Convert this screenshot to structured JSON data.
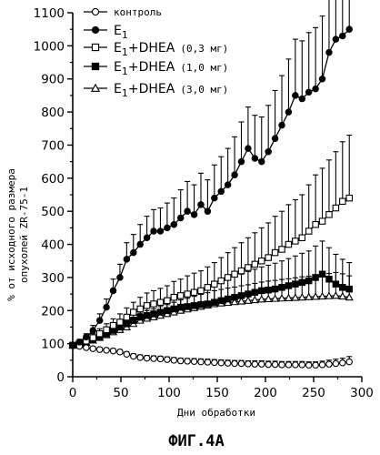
{
  "chart_data": {
    "type": "line",
    "xlabel": "Дни обработки",
    "ylabel_lines": [
      "% от исходного размера",
      "опухолей ZR-75-1"
    ],
    "caption": "ФИГ.4А",
    "xlim": [
      0,
      300
    ],
    "ylim": [
      0,
      1100
    ],
    "xticks": [
      0,
      50,
      100,
      150,
      200,
      250,
      300
    ],
    "yticks": [
      0,
      100,
      200,
      300,
      400,
      500,
      600,
      700,
      800,
      900,
      1000,
      1100
    ],
    "grid": false,
    "legend_position": "top-left",
    "series": [
      {
        "name": "контроль",
        "marker": "circle-open",
        "x": [
          0,
          7,
          14,
          21,
          28,
          35,
          42,
          49,
          56,
          63,
          70,
          77,
          84,
          91,
          98,
          105,
          112,
          119,
          126,
          133,
          140,
          147,
          154,
          161,
          168,
          175,
          182,
          189,
          196,
          203,
          210,
          217,
          224,
          231,
          238,
          245,
          252,
          259,
          266,
          273,
          280,
          287
        ],
        "y": [
          95,
          92,
          88,
          85,
          82,
          80,
          78,
          75,
          68,
          62,
          58,
          56,
          55,
          54,
          52,
          50,
          48,
          47,
          46,
          45,
          44,
          43,
          42,
          41,
          40,
          40,
          39,
          38,
          38,
          37,
          37,
          36,
          36,
          36,
          36,
          35,
          35,
          36,
          38,
          40,
          42,
          45
        ],
        "err": [
          3,
          4,
          5,
          6,
          6,
          6,
          7,
          7,
          7,
          7,
          8,
          8,
          8,
          8,
          8,
          8,
          8,
          8,
          9,
          9,
          9,
          9,
          9,
          9,
          9,
          9,
          9,
          10,
          10,
          10,
          10,
          10,
          10,
          10,
          10,
          10,
          10,
          11,
          12,
          13,
          14,
          16
        ]
      },
      {
        "name_main": "E",
        "name_sub": "1",
        "marker": "circle-filled",
        "x": [
          0,
          7,
          14,
          21,
          28,
          35,
          42,
          49,
          56,
          63,
          70,
          77,
          84,
          91,
          98,
          105,
          112,
          119,
          126,
          133,
          140,
          147,
          154,
          161,
          168,
          175,
          182,
          189,
          196,
          203,
          210,
          217,
          224,
          231,
          238,
          245,
          252,
          259,
          266,
          273,
          280,
          287
        ],
        "y": [
          95,
          105,
          120,
          140,
          170,
          210,
          260,
          300,
          355,
          375,
          400,
          420,
          440,
          440,
          450,
          460,
          480,
          500,
          490,
          520,
          500,
          540,
          560,
          580,
          610,
          650,
          690,
          660,
          650,
          680,
          720,
          760,
          800,
          850,
          840,
          860,
          870,
          900,
          980,
          1020,
          1030,
          1050
        ],
        "err": [
          5,
          8,
          10,
          15,
          20,
          25,
          35,
          40,
          50,
          55,
          60,
          65,
          65,
          70,
          75,
          80,
          85,
          90,
          90,
          95,
          95,
          100,
          105,
          110,
          115,
          120,
          125,
          130,
          135,
          140,
          145,
          150,
          160,
          170,
          175,
          180,
          185,
          190,
          200,
          210,
          220,
          230
        ]
      },
      {
        "name_main": "E",
        "name_sub": "1",
        "name_after": "+DHEA",
        "name_dose": "(0,3 мг)",
        "marker": "square-open",
        "x": [
          0,
          7,
          14,
          21,
          28,
          35,
          42,
          49,
          56,
          63,
          70,
          77,
          84,
          91,
          98,
          105,
          112,
          119,
          126,
          133,
          140,
          147,
          154,
          161,
          168,
          175,
          182,
          189,
          196,
          203,
          210,
          217,
          224,
          231,
          238,
          245,
          252,
          259,
          266,
          273,
          280,
          287
        ],
        "y": [
          95,
          100,
          108,
          118,
          130,
          142,
          155,
          165,
          180,
          195,
          205,
          215,
          220,
          225,
          230,
          240,
          245,
          250,
          255,
          260,
          270,
          280,
          290,
          300,
          310,
          320,
          330,
          340,
          350,
          360,
          375,
          385,
          400,
          410,
          420,
          440,
          460,
          470,
          490,
          510,
          530,
          540
        ],
        "err": [
          5,
          8,
          10,
          12,
          15,
          18,
          20,
          25,
          28,
          30,
          35,
          38,
          40,
          42,
          45,
          48,
          50,
          55,
          58,
          60,
          62,
          65,
          70,
          75,
          80,
          85,
          90,
          95,
          100,
          105,
          110,
          115,
          120,
          125,
          130,
          140,
          150,
          160,
          165,
          170,
          180,
          190
        ]
      },
      {
        "name_main": "E",
        "name_sub": "1",
        "name_after": "+DHEA",
        "name_dose": "(1,0 мг)",
        "marker": "square-filled",
        "x": [
          0,
          7,
          14,
          21,
          28,
          35,
          42,
          49,
          56,
          63,
          70,
          77,
          84,
          91,
          98,
          105,
          112,
          119,
          126,
          133,
          140,
          147,
          154,
          161,
          168,
          175,
          182,
          189,
          196,
          203,
          210,
          217,
          224,
          231,
          238,
          245,
          252,
          259,
          266,
          273,
          280,
          287
        ],
        "y": [
          95,
          100,
          105,
          112,
          120,
          130,
          140,
          150,
          160,
          170,
          180,
          185,
          190,
          195,
          200,
          205,
          210,
          212,
          215,
          218,
          220,
          225,
          230,
          235,
          240,
          245,
          250,
          255,
          260,
          262,
          265,
          270,
          275,
          280,
          285,
          290,
          300,
          310,
          295,
          280,
          270,
          265
        ],
        "err": [
          5,
          7,
          9,
          10,
          12,
          15,
          18,
          20,
          22,
          25,
          28,
          30,
          32,
          35,
          38,
          40,
          42,
          45,
          48,
          50,
          52,
          55,
          58,
          60,
          62,
          65,
          68,
          70,
          72,
          75,
          78,
          80,
          82,
          85,
          88,
          90,
          95,
          100,
          95,
          90,
          85,
          80
        ]
      },
      {
        "name_main": "E",
        "name_sub": "1",
        "name_after": "+DHEA",
        "name_dose": "(3,0 мг)",
        "marker": "triangle-open",
        "x": [
          0,
          7,
          14,
          21,
          28,
          35,
          42,
          49,
          56,
          63,
          70,
          77,
          84,
          91,
          98,
          105,
          112,
          119,
          126,
          133,
          140,
          147,
          154,
          161,
          168,
          175,
          182,
          189,
          196,
          203,
          210,
          217,
          224,
          231,
          238,
          245,
          252,
          259,
          266,
          273,
          280,
          287
        ],
        "y": [
          95,
          98,
          103,
          110,
          118,
          126,
          135,
          142,
          150,
          160,
          170,
          176,
          180,
          185,
          190,
          195,
          200,
          204,
          208,
          212,
          216,
          220,
          222,
          224,
          226,
          228,
          230,
          232,
          234,
          235,
          236,
          237,
          238,
          239,
          240,
          241,
          242,
          243,
          244,
          245,
          243,
          240
        ],
        "err": [
          5,
          6,
          8,
          9,
          10,
          12,
          14,
          16,
          18,
          20,
          22,
          24,
          25,
          27,
          28,
          30,
          32,
          33,
          35,
          37,
          38,
          40,
          42,
          44,
          45,
          47,
          48,
          50,
          52,
          54,
          55,
          57,
          58,
          60,
          62,
          63,
          65,
          67,
          68,
          70,
          68,
          65
        ]
      }
    ]
  }
}
